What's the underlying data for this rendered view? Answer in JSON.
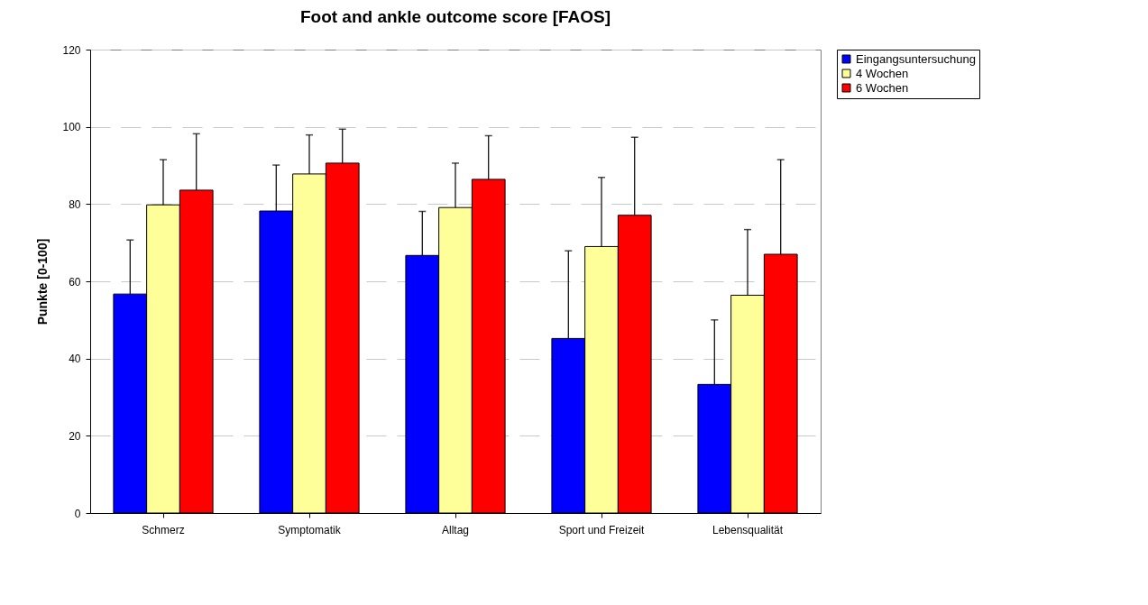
{
  "chart_data": {
    "type": "bar",
    "title": "Foot and ankle outcome score [FAOS]",
    "ylabel": "Punkte [0-100]",
    "categories": [
      "Schmerz",
      "Symptomatik",
      "Alltag",
      "Sport und Freizeit",
      "Lebensqualität"
    ],
    "series": [
      {
        "name": "Eingangsuntersuchung",
        "color": "#0000ff",
        "values": [
          56.7,
          78.2,
          66.7,
          45.2,
          33.3
        ],
        "errors": [
          [
            56.7,
            70.7
          ],
          [
            78.2,
            90.1
          ],
          [
            66.7,
            78.1
          ],
          [
            45.2,
            67.9
          ],
          [
            33.3,
            50
          ]
        ]
      },
      {
        "name": "4 Wochen",
        "color": "#ffff99",
        "values": [
          79.8,
          87.8,
          79.1,
          69,
          56.4
        ],
        "errors": [
          [
            79.8,
            91.5
          ],
          [
            87.8,
            97.9
          ],
          [
            79.1,
            90.6
          ],
          [
            69,
            86.9
          ],
          [
            56.4,
            73.4
          ]
        ]
      },
      {
        "name": "6 Wochen",
        "color": "#ff0000",
        "values": [
          83.6,
          90.6,
          86.4,
          77.1,
          67
        ],
        "errors": [
          [
            83.6,
            98.2
          ],
          [
            90.6,
            99.4
          ],
          [
            86.4,
            97.7
          ],
          [
            77.1,
            97.3
          ],
          [
            67,
            91.5
          ]
        ]
      }
    ],
    "ylim": [
      0,
      120
    ],
    "yticks": [
      0,
      20,
      40,
      60,
      80,
      100,
      120
    ],
    "grid": "y",
    "legend": "right"
  }
}
